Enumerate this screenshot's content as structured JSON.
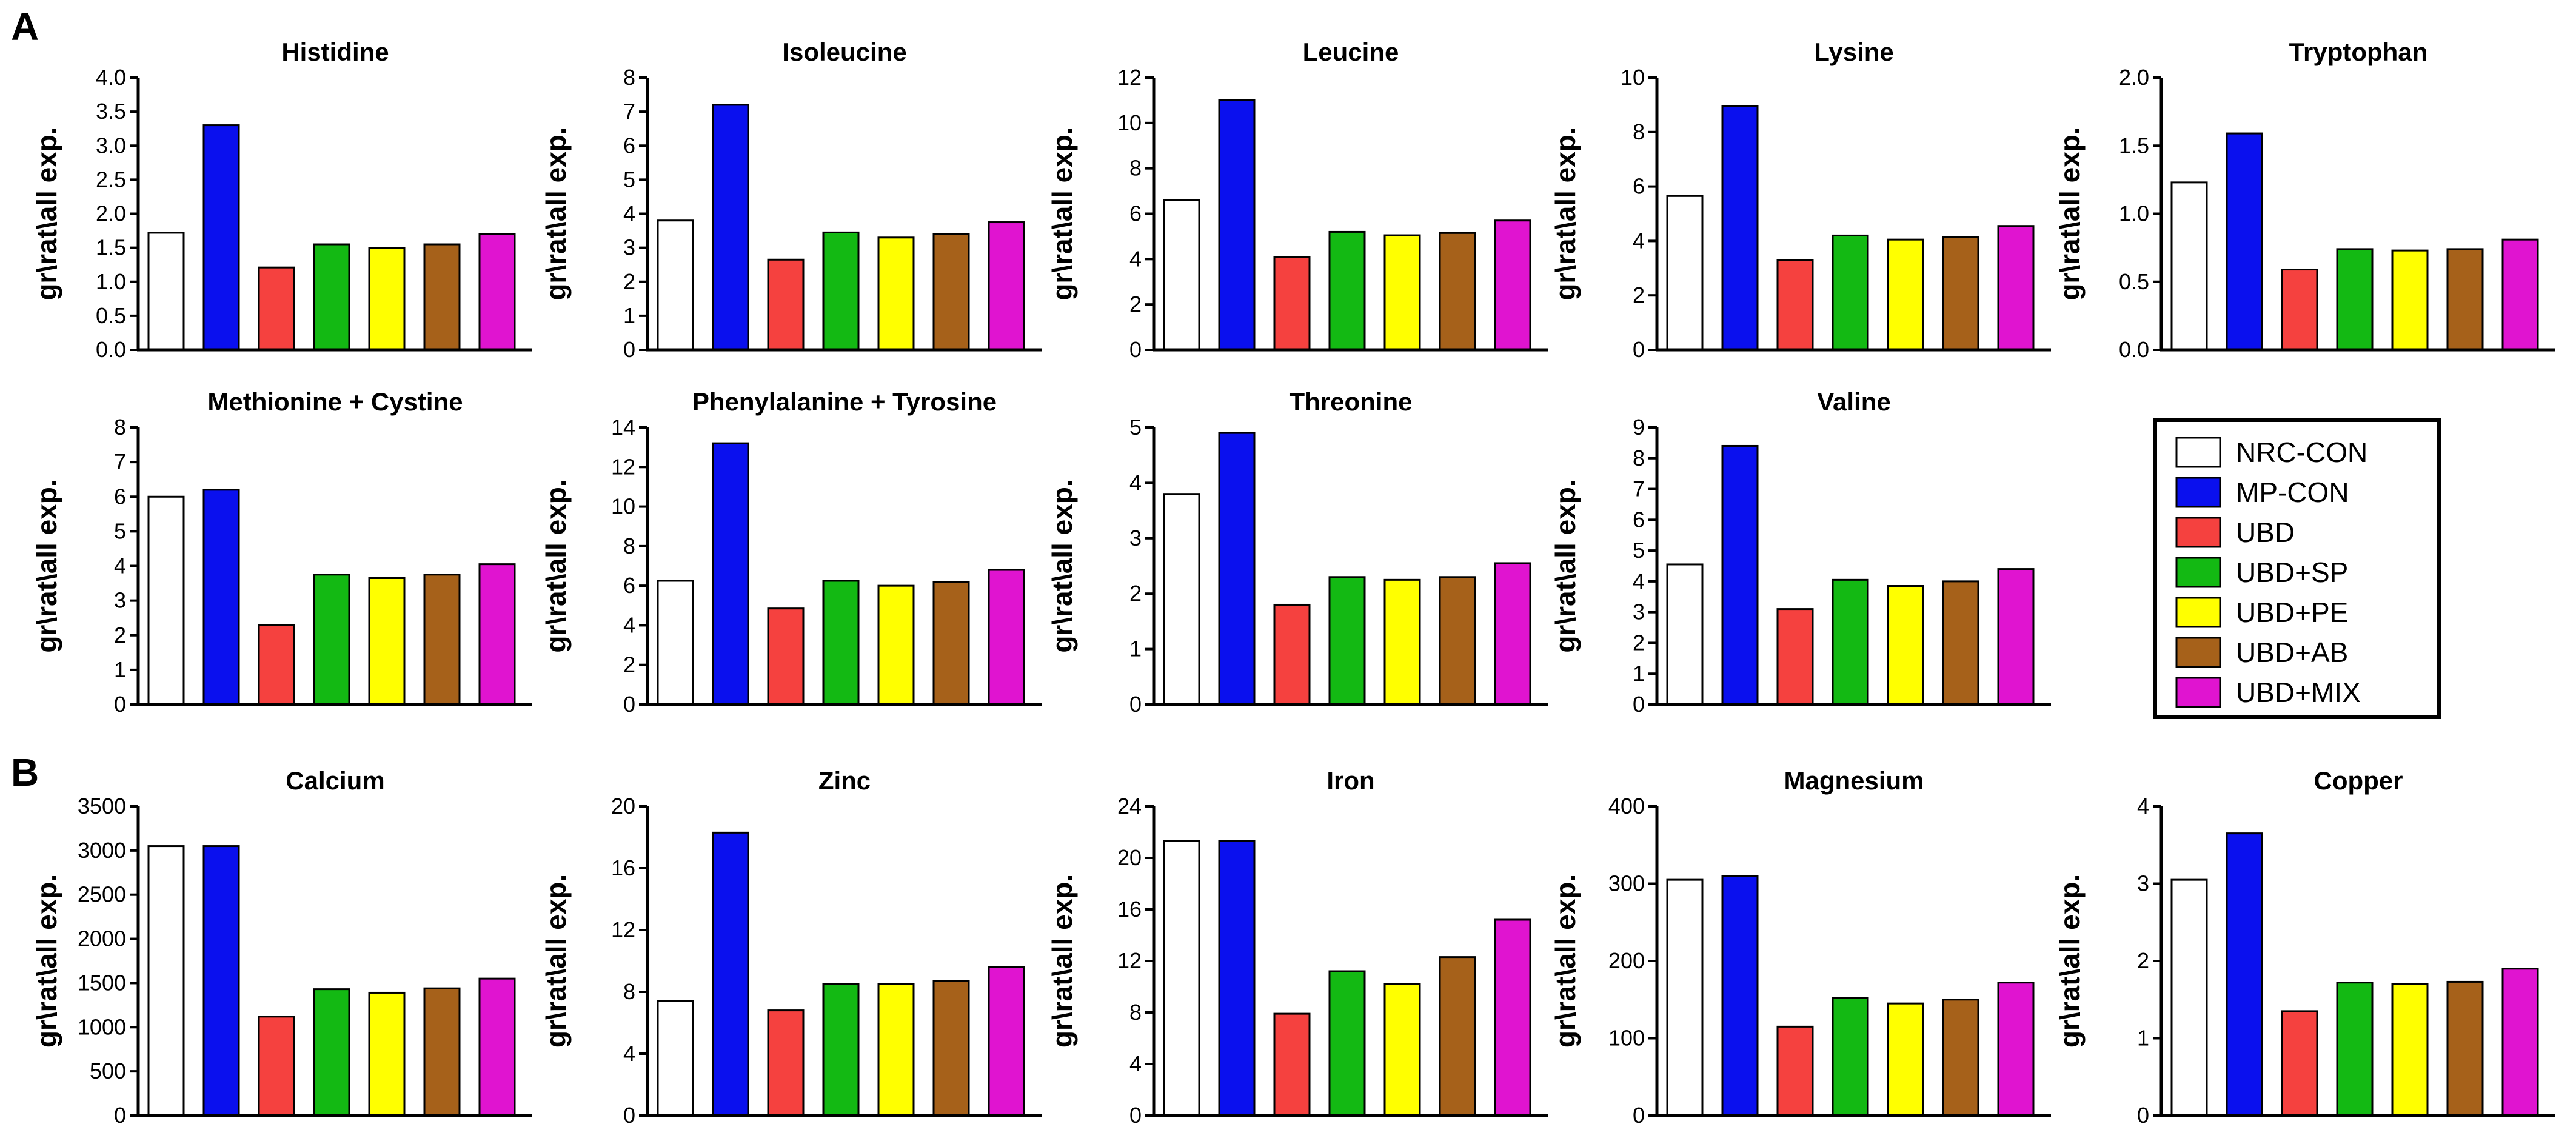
{
  "panels": [
    {
      "letter": "A"
    },
    {
      "letter": "B"
    }
  ],
  "legend": [
    {
      "label": "NRC-CON",
      "color": "#ffffff"
    },
    {
      "label": "MP-CON",
      "color": "#0a10ee"
    },
    {
      "label": "UBD",
      "color": "#f5413f"
    },
    {
      "label": "UBD+SP",
      "color": "#13b913"
    },
    {
      "label": "UBD+PE",
      "color": "#ffff00"
    },
    {
      "label": "UBD+AB",
      "color": "#a6611a"
    },
    {
      "label": "UBD+MIX",
      "color": "#e014d0"
    }
  ],
  "chart_data": [
    {
      "type": "bar",
      "title": "Histidine",
      "ylabel": "gr\\rat\\all exp.",
      "categories": [
        "NRC-CON",
        "MP-CON",
        "UBD",
        "UBD+SP",
        "UBD+PE",
        "UBD+AB",
        "UBD+MIX"
      ],
      "values": [
        1.72,
        3.3,
        1.21,
        1.55,
        1.5,
        1.55,
        1.7
      ],
      "ylim": [
        0,
        4
      ],
      "ticks": [
        "0.0",
        "0.5",
        "1.0",
        "1.5",
        "2.0",
        "2.5",
        "3.0",
        "3.5",
        "4.0"
      ]
    },
    {
      "type": "bar",
      "title": "Isoleucine",
      "ylabel": "gr\\rat\\all exp.",
      "categories": [
        "NRC-CON",
        "MP-CON",
        "UBD",
        "UBD+SP",
        "UBD+PE",
        "UBD+AB",
        "UBD+MIX"
      ],
      "values": [
        3.8,
        7.2,
        2.65,
        3.45,
        3.3,
        3.4,
        3.75
      ],
      "ylim": [
        0,
        8
      ],
      "ticks": [
        "0",
        "1",
        "2",
        "3",
        "4",
        "5",
        "6",
        "7",
        "8"
      ]
    },
    {
      "type": "bar",
      "title": "Leucine",
      "ylabel": "gr\\rat\\all exp.",
      "categories": [
        "NRC-CON",
        "MP-CON",
        "UBD",
        "UBD+SP",
        "UBD+PE",
        "UBD+AB",
        "UBD+MIX"
      ],
      "values": [
        6.6,
        11.0,
        4.1,
        5.2,
        5.05,
        5.15,
        5.7
      ],
      "ylim": [
        0,
        12
      ],
      "ticks": [
        "0",
        "2",
        "4",
        "6",
        "8",
        "10",
        "12"
      ]
    },
    {
      "type": "bar",
      "title": "Lysine",
      "ylabel": "gr\\rat\\all exp.",
      "categories": [
        "NRC-CON",
        "MP-CON",
        "UBD",
        "UBD+SP",
        "UBD+PE",
        "UBD+AB",
        "UBD+MIX"
      ],
      "values": [
        5.65,
        8.95,
        3.3,
        4.2,
        4.05,
        4.15,
        4.55
      ],
      "ylim": [
        0,
        10
      ],
      "ticks": [
        "0",
        "2",
        "4",
        "6",
        "8",
        "10"
      ]
    },
    {
      "type": "bar",
      "title": "Tryptophan",
      "ylabel": "gr\\rat\\all exp.",
      "categories": [
        "NRC-CON",
        "MP-CON",
        "UBD",
        "UBD+SP",
        "UBD+PE",
        "UBD+AB",
        "UBD+MIX"
      ],
      "values": [
        1.23,
        1.59,
        0.59,
        0.74,
        0.73,
        0.74,
        0.81
      ],
      "ylim": [
        0,
        2
      ],
      "ticks": [
        "0.0",
        "0.5",
        "1.0",
        "1.5",
        "2.0"
      ]
    },
    {
      "type": "bar",
      "title": "Methionine + Cystine",
      "ylabel": "gr\\rat\\all exp.",
      "categories": [
        "NRC-CON",
        "MP-CON",
        "UBD",
        "UBD+SP",
        "UBD+PE",
        "UBD+AB",
        "UBD+MIX"
      ],
      "values": [
        6.0,
        6.2,
        2.3,
        3.75,
        3.65,
        3.75,
        4.05
      ],
      "ylim": [
        0,
        8
      ],
      "ticks": [
        "0",
        "1",
        "2",
        "3",
        "4",
        "5",
        "6",
        "7",
        "8"
      ]
    },
    {
      "type": "bar",
      "title": "Phenylalanine + Tyrosine",
      "ylabel": "gr\\rat\\all exp.",
      "categories": [
        "NRC-CON",
        "MP-CON",
        "UBD",
        "UBD+SP",
        "UBD+PE",
        "UBD+AB",
        "UBD+MIX"
      ],
      "values": [
        6.25,
        13.2,
        4.85,
        6.25,
        6.0,
        6.2,
        6.8
      ],
      "ylim": [
        0,
        14
      ],
      "ticks": [
        "0",
        "2",
        "4",
        "6",
        "8",
        "10",
        "12",
        "14"
      ]
    },
    {
      "type": "bar",
      "title": "Threonine",
      "ylabel": "gr\\rat\\all exp.",
      "categories": [
        "NRC-CON",
        "MP-CON",
        "UBD",
        "UBD+SP",
        "UBD+PE",
        "UBD+AB",
        "UBD+MIX"
      ],
      "values": [
        3.8,
        4.9,
        1.8,
        2.3,
        2.25,
        2.3,
        2.55
      ],
      "ylim": [
        0,
        5
      ],
      "ticks": [
        "0",
        "1",
        "2",
        "3",
        "4",
        "5"
      ]
    },
    {
      "type": "bar",
      "title": "Valine",
      "ylabel": "gr\\rat\\all exp.",
      "categories": [
        "NRC-CON",
        "MP-CON",
        "UBD",
        "UBD+SP",
        "UBD+PE",
        "UBD+AB",
        "UBD+MIX"
      ],
      "values": [
        4.55,
        8.4,
        3.1,
        4.05,
        3.85,
        4.0,
        4.4
      ],
      "ylim": [
        0,
        9
      ],
      "ticks": [
        "0",
        "1",
        "2",
        "3",
        "4",
        "5",
        "6",
        "7",
        "8",
        "9"
      ]
    },
    {
      "type": "bar",
      "title": "Calcium",
      "ylabel": "gr\\rat\\all exp.",
      "categories": [
        "NRC-CON",
        "MP-CON",
        "UBD",
        "UBD+SP",
        "UBD+PE",
        "UBD+AB",
        "UBD+MIX"
      ],
      "values": [
        3050,
        3050,
        1120,
        1430,
        1390,
        1440,
        1550
      ],
      "ylim": [
        0,
        3500
      ],
      "ticks": [
        "0",
        "500",
        "1000",
        "1500",
        "2000",
        "2500",
        "3000",
        "3500"
      ]
    },
    {
      "type": "bar",
      "title": "Zinc",
      "ylabel": "gr\\rat\\all exp.",
      "categories": [
        "NRC-CON",
        "MP-CON",
        "UBD",
        "UBD+SP",
        "UBD+PE",
        "UBD+AB",
        "UBD+MIX"
      ],
      "values": [
        7.4,
        18.3,
        6.8,
        8.5,
        8.5,
        8.7,
        9.6
      ],
      "ylim": [
        0,
        20
      ],
      "ticks": [
        "0",
        "4",
        "8",
        "12",
        "16",
        "20"
      ]
    },
    {
      "type": "bar",
      "title": "Iron",
      "ylabel": "gr\\rat\\all exp.",
      "categories": [
        "NRC-CON",
        "MP-CON",
        "UBD",
        "UBD+SP",
        "UBD+PE",
        "UBD+AB",
        "UBD+MIX"
      ],
      "values": [
        21.3,
        21.3,
        7.9,
        11.2,
        10.2,
        12.3,
        15.2
      ],
      "ylim": [
        0,
        24
      ],
      "ticks": [
        "0",
        "4",
        "8",
        "12",
        "16",
        "20",
        "24"
      ]
    },
    {
      "type": "bar",
      "title": "Magnesium",
      "ylabel": "gr\\rat\\all exp.",
      "categories": [
        "NRC-CON",
        "MP-CON",
        "UBD",
        "UBD+SP",
        "UBD+PE",
        "UBD+AB",
        "UBD+MIX"
      ],
      "values": [
        305,
        310,
        115,
        152,
        145,
        150,
        172
      ],
      "ylim": [
        0,
        400
      ],
      "ticks": [
        "0",
        "100",
        "200",
        "300",
        "400"
      ]
    },
    {
      "type": "bar",
      "title": "Copper",
      "ylabel": "gr\\rat\\all exp.",
      "categories": [
        "NRC-CON",
        "MP-CON",
        "UBD",
        "UBD+SP",
        "UBD+PE",
        "UBD+AB",
        "UBD+MIX"
      ],
      "values": [
        3.05,
        3.65,
        1.35,
        1.72,
        1.7,
        1.73,
        1.9
      ],
      "ylim": [
        0,
        4
      ],
      "ticks": [
        "0",
        "1",
        "2",
        "3",
        "4"
      ]
    }
  ]
}
